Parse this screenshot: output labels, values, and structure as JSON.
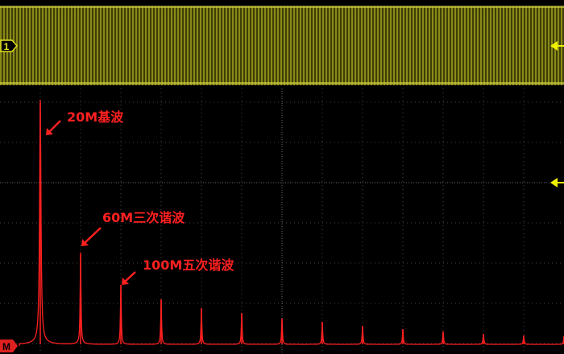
{
  "colors": {
    "channel1": "#d8d820",
    "math": "#ff2020",
    "grid": "#5a5a5a"
  },
  "markers": {
    "channel_label": "1",
    "math_label": "M"
  },
  "annotations": [
    {
      "text": "20M基波",
      "peak_index": 0
    },
    {
      "text": "60M三次谐波",
      "peak_index": 1
    },
    {
      "text": "100M五次谐波",
      "peak_index": 2
    }
  ],
  "chart_data": {
    "type": "line",
    "title": "",
    "xlabel": "",
    "ylabel": "",
    "grid": true,
    "x_unit": "MHz",
    "peaks_x": [
      20,
      60,
      100,
      140,
      180,
      220,
      260,
      300,
      340,
      380,
      420,
      460,
      500,
      540
    ],
    "peaks_amplitude_div": [
      6.0,
      2.24,
      1.48,
      1.12,
      0.9,
      0.78,
      0.64,
      0.56,
      0.46,
      0.38,
      0.32,
      0.26,
      0.22,
      0.2
    ]
  }
}
